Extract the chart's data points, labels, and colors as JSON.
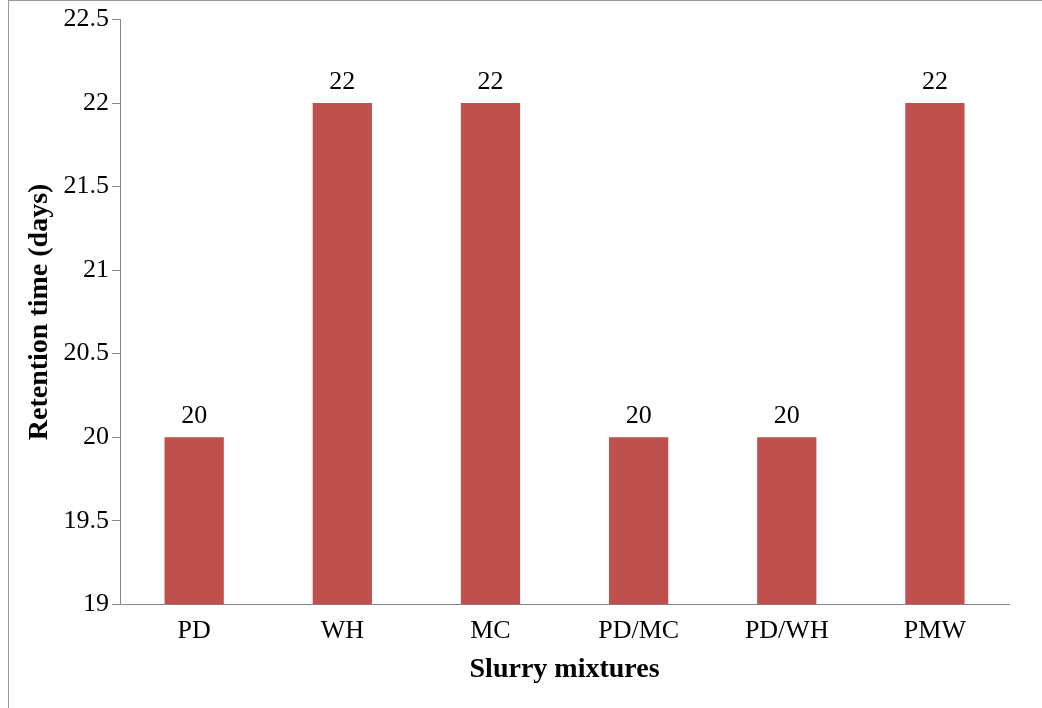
{
  "chart_data": {
    "type": "bar",
    "xlabel": "Slurry mixtures",
    "ylabel": "Retention time (days)",
    "categories": [
      "PD",
      "WH",
      "MC",
      "PD/MC",
      "PD/WH",
      "PMW"
    ],
    "values": [
      20,
      22,
      22,
      20,
      20,
      22
    ],
    "color": "#c0504d",
    "ylim": [
      19,
      22.5
    ],
    "yticks": [
      19,
      19.5,
      20,
      20.5,
      21,
      21.5,
      22,
      22.5
    ],
    "grid": false,
    "legend": false,
    "data_labels": true
  }
}
